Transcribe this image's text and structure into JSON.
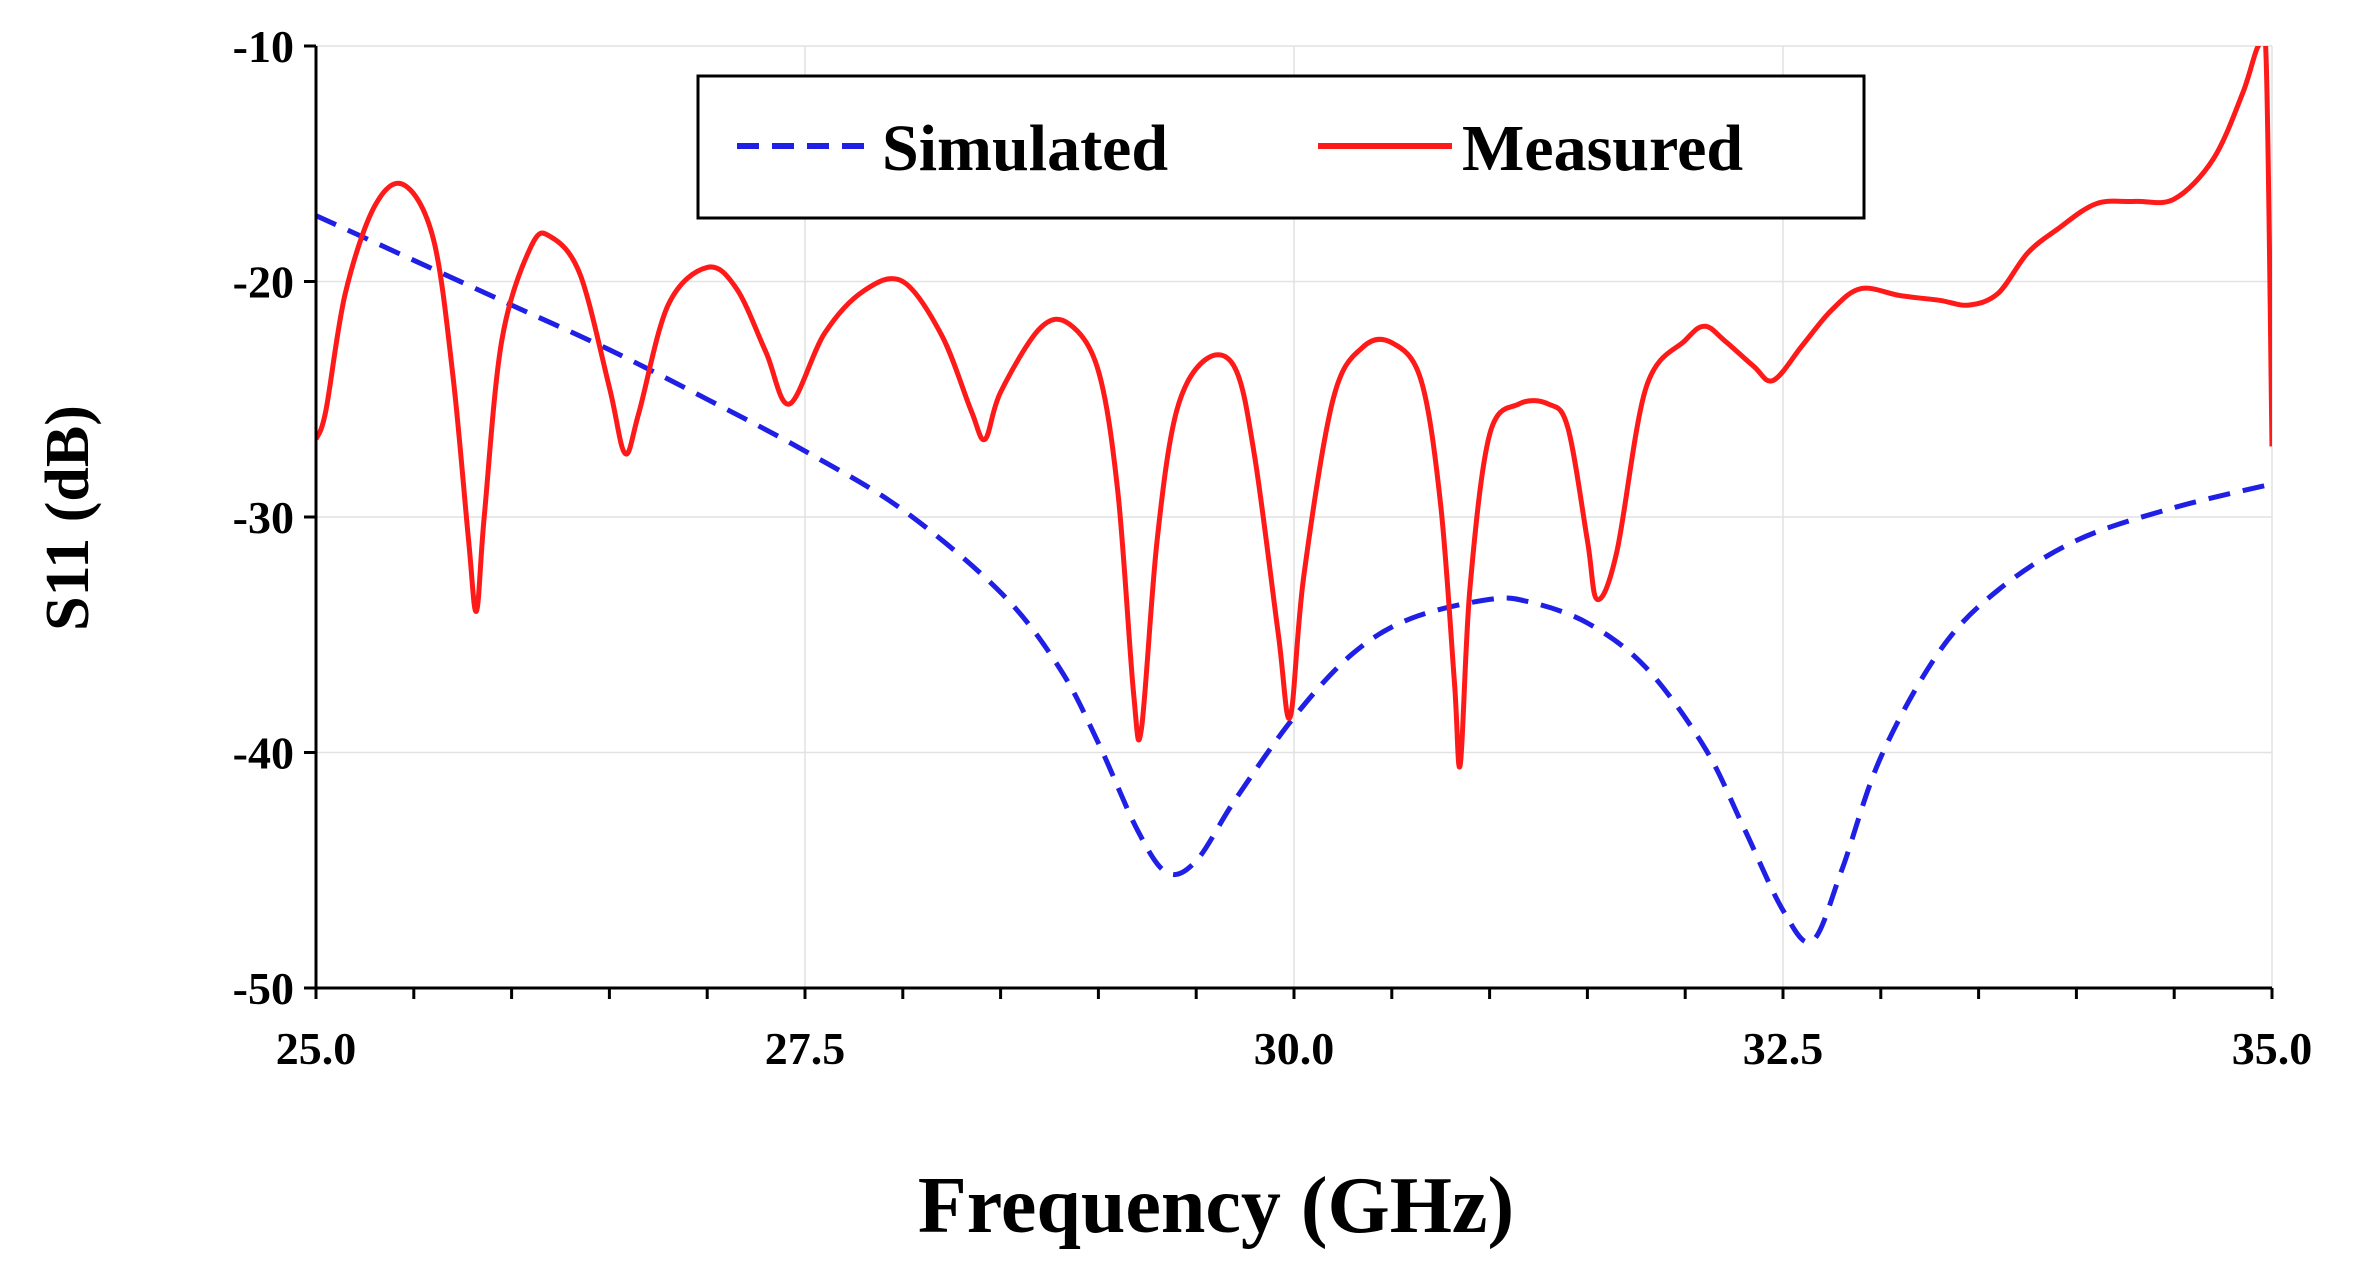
{
  "chart_data": {
    "type": "line",
    "title": "",
    "xlabel": "Frequency (GHz)",
    "ylabel": "S11 (dB)",
    "xlim": [
      25.0,
      35.0
    ],
    "ylim": [
      -50,
      -10
    ],
    "x_ticks": [
      25.0,
      27.5,
      30.0,
      32.5,
      35.0
    ],
    "x_tick_labels": [
      "25.0",
      "27.5",
      "30.0",
      "32.5",
      "35.0"
    ],
    "x_minor_step": 0.5,
    "y_ticks": [
      -50,
      -40,
      -30,
      -20,
      -10
    ],
    "y_tick_labels": [
      "-50",
      "-40",
      "-30",
      "-20",
      "-10"
    ],
    "grid": true,
    "legend_position": "top-center",
    "colors": {
      "simulated": "#1f1fe6",
      "measured": "#ff1a1a",
      "grid": "#e2e2e2",
      "axis": "#000000"
    },
    "series": [
      {
        "name": "Simulated",
        "style": "dashed",
        "x": [
          25.0,
          25.5,
          26.0,
          26.5,
          27.0,
          27.5,
          28.0,
          28.5,
          28.8,
          29.0,
          29.2,
          29.35,
          29.5,
          29.7,
          30.0,
          30.3,
          30.6,
          31.0,
          31.2,
          31.5,
          31.8,
          32.1,
          32.3,
          32.5,
          32.65,
          32.8,
          33.0,
          33.3,
          33.6,
          34.0,
          34.5,
          35.0
        ],
        "y": [
          -17.2,
          -19.1,
          -21.0,
          -22.9,
          -25.0,
          -27.2,
          -29.7,
          -33.2,
          -36.4,
          -39.6,
          -43.3,
          -45.1,
          -44.6,
          -42.0,
          -38.5,
          -35.8,
          -34.3,
          -33.5,
          -33.6,
          -34.5,
          -36.4,
          -39.8,
          -43.2,
          -46.7,
          -48.0,
          -45.0,
          -40.2,
          -35.7,
          -33.1,
          -31.0,
          -29.6,
          -28.6
        ]
      },
      {
        "name": "Measured",
        "style": "solid",
        "x": [
          25.0,
          25.05,
          25.15,
          25.3,
          25.45,
          25.6,
          25.7,
          25.78,
          25.82,
          25.86,
          25.95,
          26.1,
          26.2,
          26.35,
          26.5,
          26.58,
          26.65,
          26.8,
          27.0,
          27.15,
          27.3,
          27.42,
          27.6,
          27.8,
          28.0,
          28.2,
          28.35,
          28.42,
          28.5,
          28.7,
          28.85,
          29.0,
          29.1,
          29.18,
          29.22,
          29.3,
          29.4,
          29.55,
          29.7,
          29.8,
          29.92,
          29.98,
          30.05,
          30.2,
          30.35,
          30.5,
          30.65,
          30.75,
          30.82,
          30.85,
          30.9,
          31.0,
          31.15,
          31.3,
          31.4,
          31.5,
          31.55,
          31.65,
          31.8,
          32.0,
          32.1,
          32.2,
          32.35,
          32.45,
          32.6,
          32.75,
          32.9,
          33.1,
          33.3,
          33.45,
          33.6,
          33.75,
          33.9,
          34.1,
          34.3,
          34.5,
          34.7,
          34.85,
          34.93,
          34.97,
          35.0
        ],
        "y": [
          -26.7,
          -25.5,
          -20.5,
          -16.8,
          -15.9,
          -18.2,
          -24.0,
          -31.0,
          -34.0,
          -30.0,
          -22.5,
          -18.5,
          -18.1,
          -19.7,
          -24.5,
          -27.3,
          -25.6,
          -21.0,
          -19.4,
          -20.3,
          -23.0,
          -25.2,
          -22.2,
          -20.4,
          -20.0,
          -22.3,
          -25.5,
          -26.7,
          -24.7,
          -22.0,
          -21.8,
          -23.8,
          -29.0,
          -37.5,
          -39.0,
          -31.0,
          -25.5,
          -23.3,
          -23.7,
          -27.5,
          -35.0,
          -38.5,
          -32.5,
          -25.0,
          -22.8,
          -22.6,
          -24.2,
          -29.5,
          -37.0,
          -40.5,
          -33.0,
          -26.5,
          -25.2,
          -25.2,
          -26.2,
          -31.0,
          -33.5,
          -31.5,
          -24.5,
          -22.5,
          -21.9,
          -22.5,
          -23.6,
          -24.2,
          -22.7,
          -21.2,
          -20.3,
          -20.6,
          -20.8,
          -21.0,
          -20.5,
          -18.8,
          -17.8,
          -16.7,
          -16.6,
          -16.5,
          -14.8,
          -12.0,
          -10.0,
          -10.5,
          -27.0
        ]
      }
    ]
  }
}
